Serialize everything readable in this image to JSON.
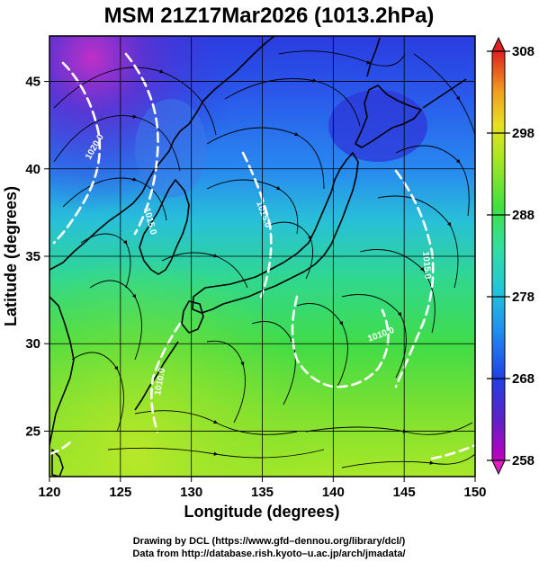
{
  "title": "MSM 21Z17Mar2026 (1013.2hPa)",
  "xaxis": {
    "label": "Longitude (degrees)",
    "ticks": [
      "120",
      "125",
      "130",
      "135",
      "140",
      "145",
      "150"
    ],
    "range": [
      120,
      150
    ]
  },
  "yaxis": {
    "label": "Latitude  (degrees)",
    "ticks": [
      "25",
      "30",
      "35",
      "40",
      "45"
    ],
    "range": [
      22.4,
      47.6
    ]
  },
  "colorbar": {
    "ticks": [
      "258",
      "268",
      "278",
      "288",
      "298",
      "308"
    ],
    "range": [
      258,
      308
    ],
    "colors": [
      "#c000c0",
      "#5020c8",
      "#2040e8",
      "#2888f0",
      "#20c8d8",
      "#30e0a0",
      "#40e040",
      "#a0e820",
      "#e8e020",
      "#f0b020",
      "#f06820",
      "#e02020"
    ]
  },
  "contours": {
    "labels": [
      "1020.0",
      "1015.0",
      "1015.0",
      "1015.0",
      "1010.0",
      "1010.0"
    ]
  },
  "credits": {
    "line1": "Drawing by DCL (https://www.gfd–dennou.org/library/dcl/)",
    "line2": "Data from http://database.rish.kyoto–u.ac.jp/arch/jmadata/"
  }
}
